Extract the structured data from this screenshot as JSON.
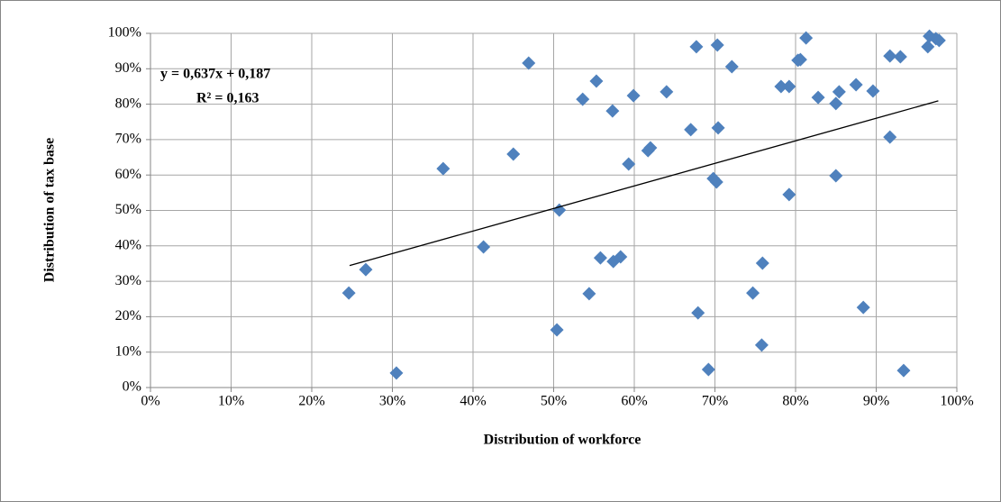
{
  "chart_data": {
    "type": "scatter",
    "x_label": "Distribution of workforce",
    "y_label": "Distribution of tax base",
    "color": "#4f81bd",
    "grid": true,
    "xlim": [
      0,
      100
    ],
    "ylim": [
      0,
      100
    ],
    "xticks": [
      {
        "value": 0,
        "label": "0%"
      },
      {
        "value": 10,
        "label": "10%"
      },
      {
        "value": 20,
        "label": "20%"
      },
      {
        "value": 30,
        "label": "30%"
      },
      {
        "value": 40,
        "label": "40%"
      },
      {
        "value": 50,
        "label": "50%"
      },
      {
        "value": 60,
        "label": "60%"
      },
      {
        "value": 70,
        "label": "70%"
      },
      {
        "value": 80,
        "label": "80%"
      },
      {
        "value": 90,
        "label": "90%"
      },
      {
        "value": 100,
        "label": "100%"
      }
    ],
    "yticks": [
      {
        "value": 0,
        "label": "0%"
      },
      {
        "value": 10,
        "label": "10%"
      },
      {
        "value": 20,
        "label": "20%"
      },
      {
        "value": 30,
        "label": "30%"
      },
      {
        "value": 40,
        "label": "40%"
      },
      {
        "value": 50,
        "label": "50%"
      },
      {
        "value": 60,
        "label": "60%"
      },
      {
        "value": 70,
        "label": "70%"
      },
      {
        "value": 80,
        "label": "80%"
      },
      {
        "value": 90,
        "label": "90%"
      },
      {
        "value": 100,
        "label": "100%"
      }
    ],
    "x": [
      24.6,
      26.7,
      30.5,
      36.3,
      41.3,
      45.0,
      46.9,
      50.4,
      50.7,
      53.6,
      54.4,
      55.3,
      55.8,
      57.3,
      57.4,
      58.3,
      59.3,
      59.9,
      61.7,
      62.0,
      64.0,
      67.0,
      67.7,
      67.9,
      69.2,
      69.8,
      70.2,
      70.3,
      70.4,
      72.1,
      74.7,
      75.8,
      75.9,
      78.2,
      79.2,
      79.2,
      80.3,
      80.6,
      81.3,
      82.8,
      85.0,
      85.0,
      85.4,
      87.5,
      88.4,
      89.6,
      91.7,
      91.7,
      93.0,
      93.4,
      96.4,
      96.6,
      97.4,
      97.8
    ],
    "values": [
      26.7,
      33.3,
      4.1,
      61.8,
      39.7,
      65.9,
      91.6,
      16.3,
      50.1,
      81.4,
      26.5,
      86.5,
      36.6,
      78.1,
      35.6,
      36.9,
      63.1,
      82.4,
      66.9,
      67.7,
      83.5,
      72.8,
      96.2,
      21.1,
      5.1,
      59.0,
      58.0,
      96.7,
      73.3,
      90.6,
      26.7,
      12.0,
      35.1,
      85.0,
      85.0,
      54.5,
      92.4,
      92.6,
      98.7,
      81.9,
      80.2,
      59.8,
      83.5,
      85.5,
      22.6,
      83.7,
      70.7,
      93.6,
      93.4,
      4.8,
      96.2,
      99.2,
      98.5,
      98.0
    ],
    "trendline": {
      "equation": "y = 0,637x + 0,187",
      "r2": "R² = 0,163",
      "slope": 0.637,
      "intercept": 18.7,
      "x_range": [
        24.7,
        97.7
      ]
    }
  }
}
